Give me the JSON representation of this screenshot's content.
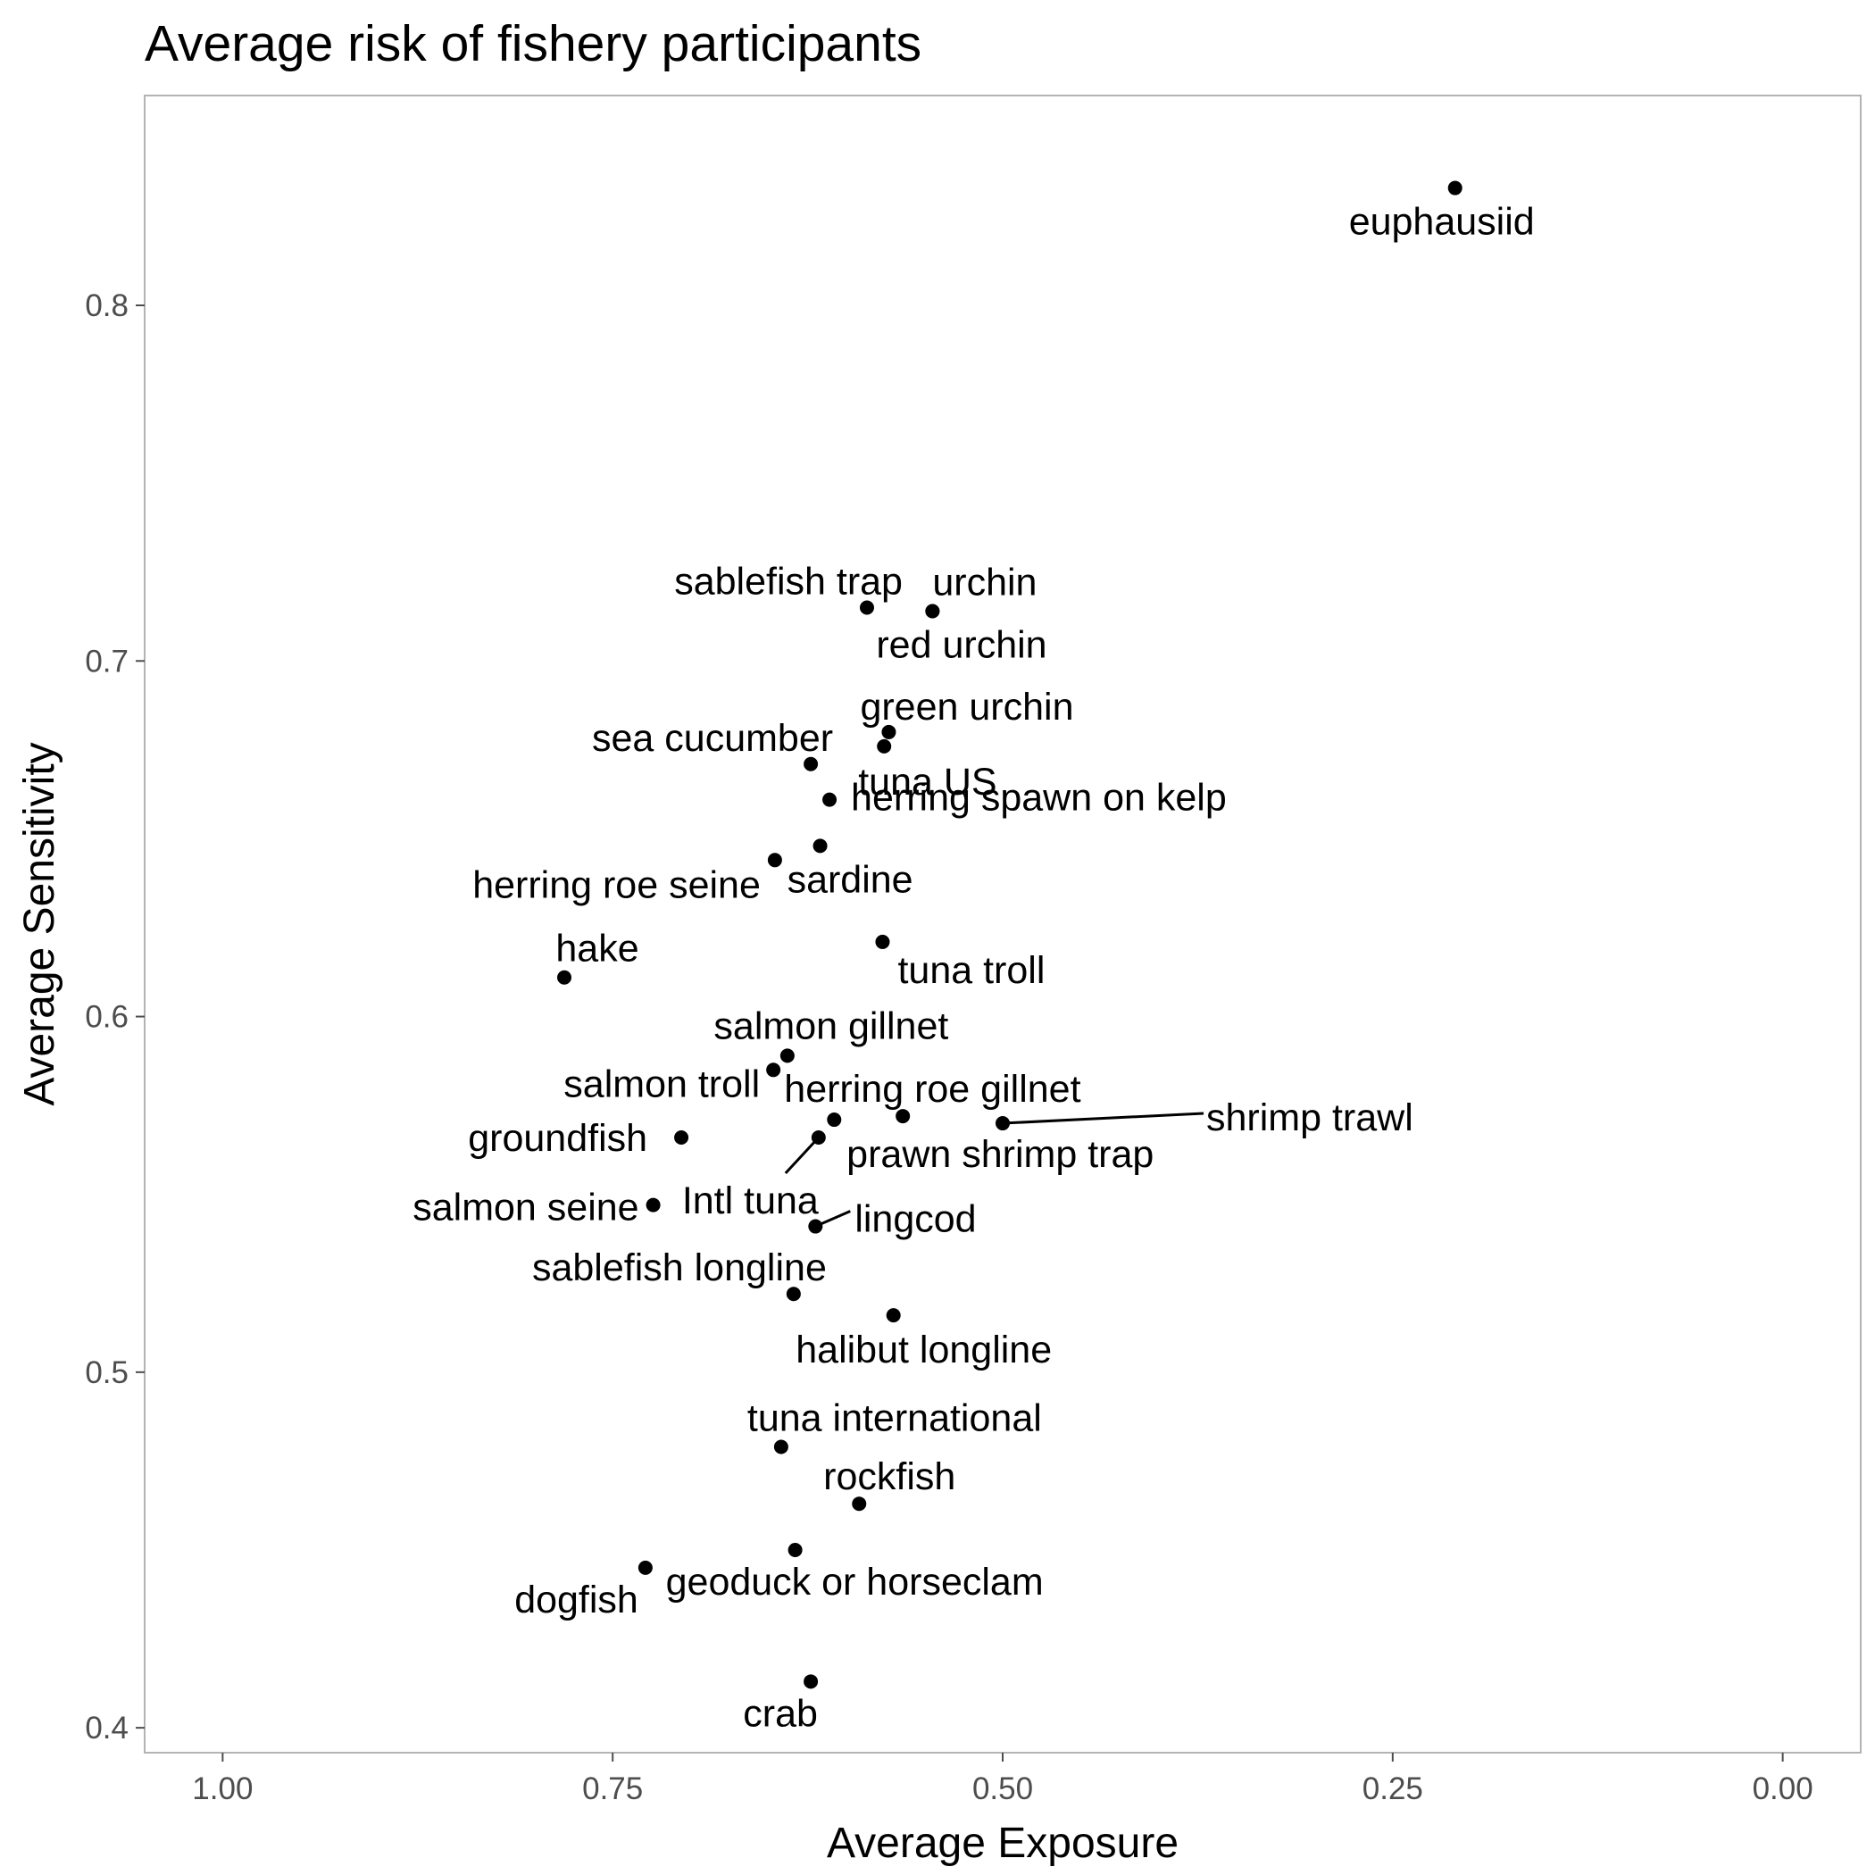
{
  "chart_data": {
    "type": "scatter",
    "title": "Average risk of fishery participants",
    "xlabel": "Average Exposure",
    "ylabel": "Average Sensitivity",
    "x_reversed": true,
    "xlim": [
      1.05,
      -0.05
    ],
    "ylim": [
      0.393,
      0.859
    ],
    "xticks": [
      1.0,
      0.75,
      0.5,
      0.25,
      0.0
    ],
    "xtick_labels": [
      "1.00",
      "0.75",
      "0.50",
      "0.25",
      "0.00"
    ],
    "yticks": [
      0.4,
      0.5,
      0.6,
      0.7,
      0.8
    ],
    "ytick_labels": [
      "0.4",
      "0.5",
      "0.6",
      "0.7",
      "0.8"
    ],
    "grid": false,
    "colors": {
      "point": "#000000",
      "panel_border": "#b3b3b3",
      "tick": "#4d4d4d",
      "background": "#ffffff"
    },
    "points": [
      {
        "label": "euphausiid",
        "x": 0.21,
        "y": 0.833
      },
      {
        "label": "sablefish trap",
        "x": 0.587,
        "y": 0.715
      },
      {
        "label": "urchin",
        "x": 0.545,
        "y": 0.714
      },
      {
        "label": "red urchin",
        "x": 0.545,
        "y": 0.714
      },
      {
        "label": "green urchin",
        "x": 0.573,
        "y": 0.68
      },
      {
        "label": "sea cucumber",
        "x": 0.623,
        "y": 0.671
      },
      {
        "label": "tuna US",
        "x": 0.576,
        "y": 0.676
      },
      {
        "label": "herring spawn on kelp",
        "x": 0.611,
        "y": 0.661
      },
      {
        "label": "sardine",
        "x": 0.617,
        "y": 0.648
      },
      {
        "label": "herring roe seine",
        "x": 0.646,
        "y": 0.644
      },
      {
        "label": "hake",
        "x": 0.781,
        "y": 0.611
      },
      {
        "label": "tuna troll",
        "x": 0.577,
        "y": 0.621
      },
      {
        "label": "salmon gillnet",
        "x": 0.638,
        "y": 0.589
      },
      {
        "label": "salmon troll",
        "x": 0.647,
        "y": 0.585
      },
      {
        "label": "herring roe gillnet",
        "x": 0.608,
        "y": 0.571
      },
      {
        "label": "shrimp trawl",
        "x": 0.5,
        "y": 0.57
      },
      {
        "label": "prawn shrimp trap",
        "x": 0.564,
        "y": 0.572
      },
      {
        "label": "groundfish",
        "x": 0.706,
        "y": 0.566
      },
      {
        "label": "Intl tuna",
        "x": 0.618,
        "y": 0.566
      },
      {
        "label": "salmon seine",
        "x": 0.724,
        "y": 0.547
      },
      {
        "label": "lingcod",
        "x": 0.62,
        "y": 0.541
      },
      {
        "label": "sablefish longline",
        "x": 0.634,
        "y": 0.522
      },
      {
        "label": "halibut longline",
        "x": 0.57,
        "y": 0.516
      },
      {
        "label": "tuna international",
        "x": 0.642,
        "y": 0.479
      },
      {
        "label": "rockfish",
        "x": 0.592,
        "y": 0.463
      },
      {
        "label": "geoduck or horseclam",
        "x": 0.633,
        "y": 0.45
      },
      {
        "label": "dogfish",
        "x": 0.729,
        "y": 0.445
      },
      {
        "label": "crab",
        "x": 0.623,
        "y": 0.413
      }
    ]
  }
}
